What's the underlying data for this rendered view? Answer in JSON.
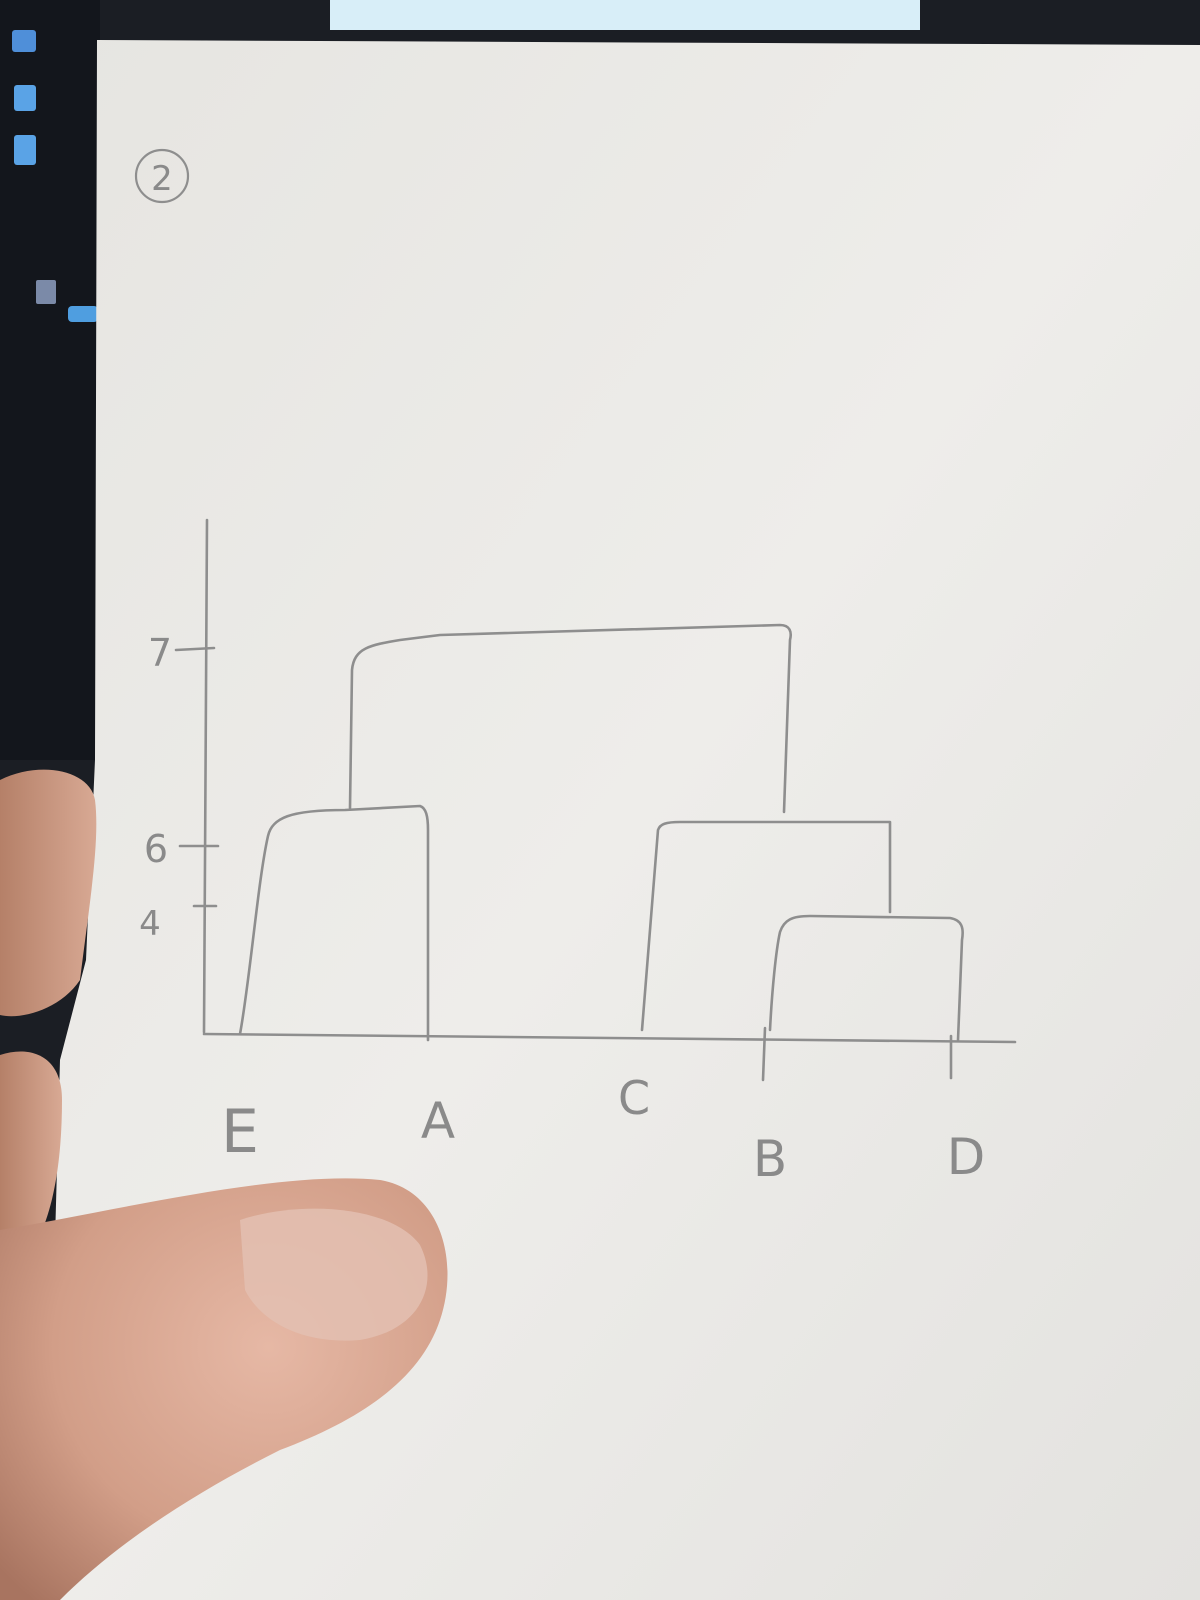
{
  "page": {
    "number": "2"
  },
  "diagram": {
    "type": "dendrogram",
    "y_axis": {
      "ticks": [
        {
          "label": "4",
          "value": 4
        },
        {
          "label": "6",
          "value": 6
        },
        {
          "label": "7",
          "value": 7
        }
      ]
    },
    "leaves": [
      {
        "id": "E",
        "label": "E"
      },
      {
        "id": "A",
        "label": "A"
      },
      {
        "id": "C",
        "label": "C"
      },
      {
        "id": "B",
        "label": "B"
      },
      {
        "id": "D",
        "label": "D"
      }
    ],
    "merges": [
      {
        "left": "B",
        "right": "D"
      },
      {
        "left": "E",
        "right": "A",
        "height": 6
      },
      {
        "left": "C",
        "right": "BD"
      },
      {
        "left": "EA",
        "right": "CBD",
        "height": 7
      }
    ]
  },
  "colors": {
    "pencil": "#8e8e8e",
    "paper": "#e9e8e4",
    "background": "#1b1e24",
    "skin": "#d9a48c"
  }
}
